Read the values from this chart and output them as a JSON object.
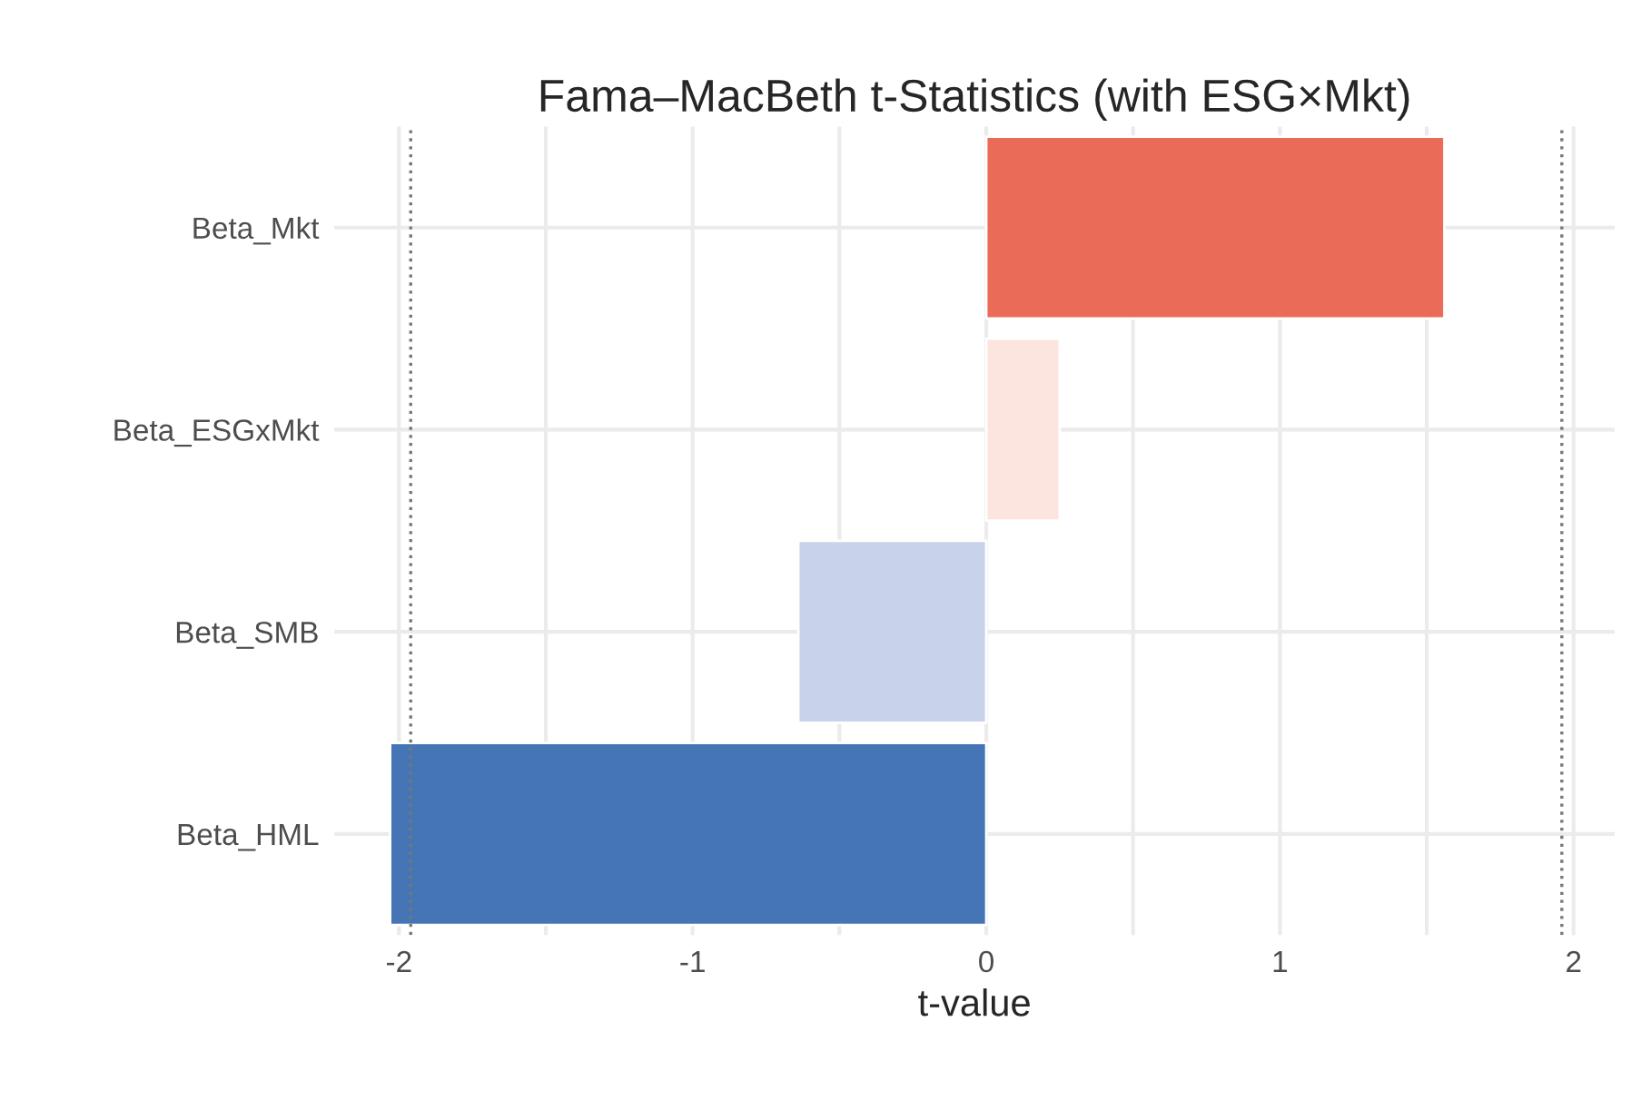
{
  "chart_data": {
    "type": "bar",
    "orientation": "horizontal",
    "title": "Fama–MacBeth t-Statistics (with ESG×Mkt)",
    "xlabel": "t-value",
    "categories": [
      "Beta_Mkt",
      "Beta_ESGxMkt",
      "Beta_SMB",
      "Beta_HML"
    ],
    "values": [
      1.56,
      0.25,
      -0.64,
      -2.03
    ],
    "colors": [
      "#ea6b58",
      "#fde5df",
      "#c8d3ea",
      "#4575b4"
    ],
    "xlim": [
      -2.22,
      2.14
    ],
    "xticks": [
      -2,
      {
        "value": -1.5,
        "label": null
      },
      -1,
      {
        "value": -0.5,
        "label": null
      },
      0,
      {
        "value": 0.5,
        "label": null
      },
      1,
      {
        "value": 1.5,
        "label": null
      },
      2
    ],
    "ref_lines": [
      {
        "axis": "x",
        "value": -1.96,
        "color": "#777777",
        "line_style": "dotted"
      },
      {
        "axis": "x",
        "value": 1.96,
        "color": "#777777",
        "line_style": "dotted"
      }
    ],
    "grid": true
  }
}
